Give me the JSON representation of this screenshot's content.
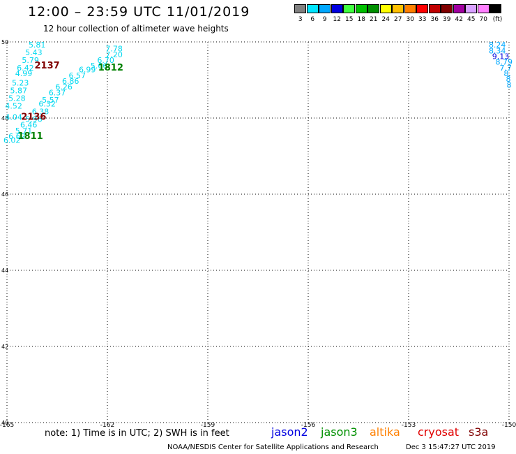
{
  "header": {
    "title": "12:00 – 23:59 UTC 11/01/2019",
    "subtitle": "12 hour collection of altimeter wave heights"
  },
  "colorbar": {
    "unit": "(ft)",
    "entries": [
      {
        "label": "3",
        "color": "#808080"
      },
      {
        "label": "6",
        "color": "#00e5ff"
      },
      {
        "label": "9",
        "color": "#00a8ff"
      },
      {
        "label": "12",
        "color": "#0000e0"
      },
      {
        "label": "15",
        "color": "#40ff40"
      },
      {
        "label": "18",
        "color": "#00c000"
      },
      {
        "label": "21",
        "color": "#009000"
      },
      {
        "label": "24",
        "color": "#ffff00"
      },
      {
        "label": "27",
        "color": "#ffc000"
      },
      {
        "label": "30",
        "color": "#ff8000"
      },
      {
        "label": "33",
        "color": "#ff0000"
      },
      {
        "label": "36",
        "color": "#c00000"
      },
      {
        "label": "39",
        "color": "#800000"
      },
      {
        "label": "42",
        "color": "#a000a0"
      },
      {
        "label": "45",
        "color": "#d8a0ff"
      },
      {
        "label": "70",
        "color": "#ff80ff"
      },
      {
        "label": "",
        "color": "#000000"
      }
    ]
  },
  "map": {
    "lon_range": [
      -165,
      -150
    ],
    "lat_range": [
      40,
      50
    ],
    "lon_ticks": [
      "-165",
      "-162",
      "-159",
      "-156",
      "-153",
      "-150"
    ],
    "lat_ticks": [
      "50",
      "48",
      "46",
      "44",
      "42",
      "40"
    ],
    "track_color": "#00d8f0",
    "track_a": [
      {
        "lon": -164.1,
        "lat": 49.85,
        "v": "5.81"
      },
      {
        "lon": -164.2,
        "lat": 49.65,
        "v": "5.43"
      },
      {
        "lon": -164.3,
        "lat": 49.45,
        "v": "5.79"
      },
      {
        "lon": -164.45,
        "lat": 49.25,
        "v": "6.42"
      },
      {
        "lon": -164.5,
        "lat": 49.1,
        "v": "4.99"
      },
      {
        "lon": -164.6,
        "lat": 48.85,
        "v": "5.23"
      },
      {
        "lon": -164.65,
        "lat": 48.65,
        "v": "5.87"
      },
      {
        "lon": -164.7,
        "lat": 48.45,
        "v": "5.28"
      },
      {
        "lon": -164.8,
        "lat": 48.25,
        "v": "4.52"
      },
      {
        "lon": -164.8,
        "lat": 47.95,
        "v": "4.04"
      }
    ],
    "track_b": [
      {
        "lon": -161.8,
        "lat": 49.75,
        "v": "7.78"
      },
      {
        "lon": -161.8,
        "lat": 49.6,
        "v": "7.20"
      },
      {
        "lon": -162.05,
        "lat": 49.45,
        "v": "6.70"
      },
      {
        "lon": -162.25,
        "lat": 49.3,
        "v": "5.66"
      },
      {
        "lon": -162.6,
        "lat": 49.2,
        "v": "6.99"
      },
      {
        "lon": -162.9,
        "lat": 49.05,
        "v": "6.57"
      },
      {
        "lon": -163.1,
        "lat": 48.9,
        "v": "6.86"
      },
      {
        "lon": -163.3,
        "lat": 48.75,
        "v": "6.26"
      },
      {
        "lon": -163.5,
        "lat": 48.6,
        "v": "6.37"
      },
      {
        "lon": -163.7,
        "lat": 48.4,
        "v": "5.57"
      },
      {
        "lon": -163.8,
        "lat": 48.3,
        "v": "6.32"
      },
      {
        "lon": -164.0,
        "lat": 48.1,
        "v": "6.38"
      },
      {
        "lon": -164.2,
        "lat": 47.9,
        "v": "5.96"
      },
      {
        "lon": -164.35,
        "lat": 47.75,
        "v": "6.46"
      },
      {
        "lon": -164.5,
        "lat": 47.6,
        "v": "5.71"
      },
      {
        "lon": -164.7,
        "lat": 47.45,
        "v": "6.62"
      },
      {
        "lon": -164.85,
        "lat": 47.35,
        "v": "6.02"
      }
    ],
    "track_c": [
      {
        "lon": -150.35,
        "lat": 49.85,
        "v": "8.24",
        "color": "#00a8ff"
      },
      {
        "lon": -150.35,
        "lat": 49.7,
        "v": "8.34",
        "color": "#00a8ff"
      },
      {
        "lon": -150.25,
        "lat": 49.55,
        "v": "9.13",
        "color": "#0000e0"
      },
      {
        "lon": -150.15,
        "lat": 49.4,
        "v": "8.79",
        "color": "#00a8ff"
      },
      {
        "lon": -150.1,
        "lat": 49.25,
        "v": "7.7",
        "color": "#00a8ff"
      },
      {
        "lon": -150.05,
        "lat": 49.1,
        "v": "8.",
        "color": "#00a8ff"
      },
      {
        "lon": -150.02,
        "lat": 48.95,
        "v": "8",
        "color": "#00a8ff"
      },
      {
        "lon": -150.0,
        "lat": 48.8,
        "v": "8",
        "color": "#00a8ff"
      }
    ],
    "time_labels": [
      {
        "lon": -163.8,
        "lat": 49.3,
        "text": "2137",
        "color": "#800000"
      },
      {
        "lon": -161.9,
        "lat": 49.25,
        "text": "1812",
        "color": "#008000"
      },
      {
        "lon": -164.2,
        "lat": 47.95,
        "text": "2136",
        "color": "#800000"
      },
      {
        "lon": -164.3,
        "lat": 47.45,
        "text": "1811",
        "color": "#008000"
      }
    ]
  },
  "footer": {
    "note": "note:  1) Time is in UTC;  2) SWH is in feet",
    "satellites": [
      {
        "name": "jason2",
        "color": "#0000e0"
      },
      {
        "name": "jason3",
        "color": "#009000"
      },
      {
        "name": "altika",
        "color": "#ff8000"
      },
      {
        "name": "cryosat",
        "color": "#e00000"
      },
      {
        "name": "s3a",
        "color": "#800000"
      }
    ],
    "credit": "NOAA/NESDIS Center for Satellite Applications and Research",
    "timestamp": "Dec  3 15:47:27 UTC 2019"
  }
}
